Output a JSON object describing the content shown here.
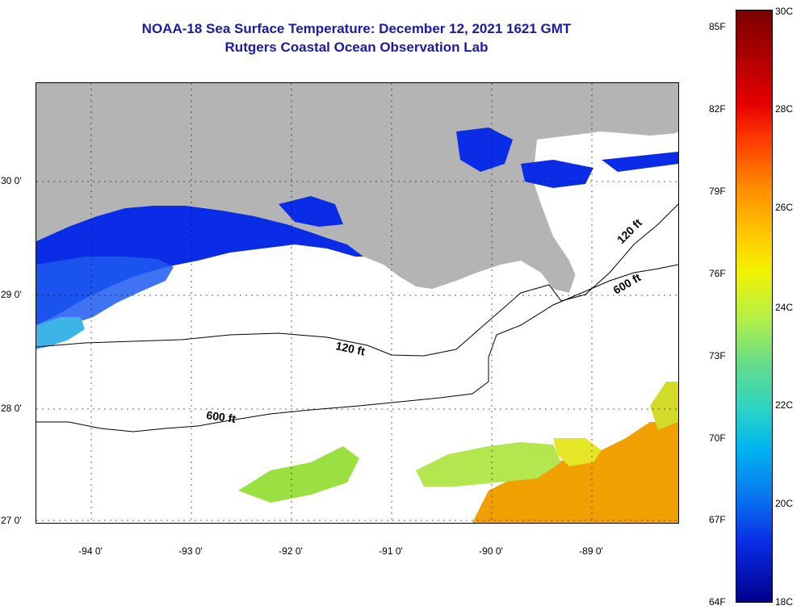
{
  "title": {
    "line1": "NOAA-18 Sea Surface Temperature:  December 12, 2021 1621 GMT",
    "line2": "Rutgers Coastal Ocean Observation Lab"
  },
  "axes": {
    "lat_labels": [
      "30 0'",
      "29 0'",
      "28 0'",
      "27 0'"
    ],
    "lon_labels": [
      "-94 0'",
      "-93 0'",
      "-92 0'",
      "-91 0'",
      "-90 0'",
      "-89 0'"
    ]
  },
  "contours": {
    "label_120_west": "120 ft",
    "label_600_west": "600 ft",
    "label_120_east": "120 ft",
    "label_600_east": "600 ft"
  },
  "colorbar": {
    "fahrenheit": [
      "85F",
      "82F",
      "79F",
      "76F",
      "73F",
      "70F",
      "67F",
      "64F"
    ],
    "celsius": [
      "30C",
      "28C",
      "26C",
      "24C",
      "22C",
      "20C",
      "18C"
    ],
    "range_celsius": [
      18,
      30
    ]
  },
  "colors": {
    "land": "#b4b4b4",
    "title": "#1a1aa6",
    "cold_water": "#0a2ce6",
    "cool_water": "#3cb4e6",
    "warm_water": "#f0a000",
    "mid_water": "#9ae040"
  }
}
